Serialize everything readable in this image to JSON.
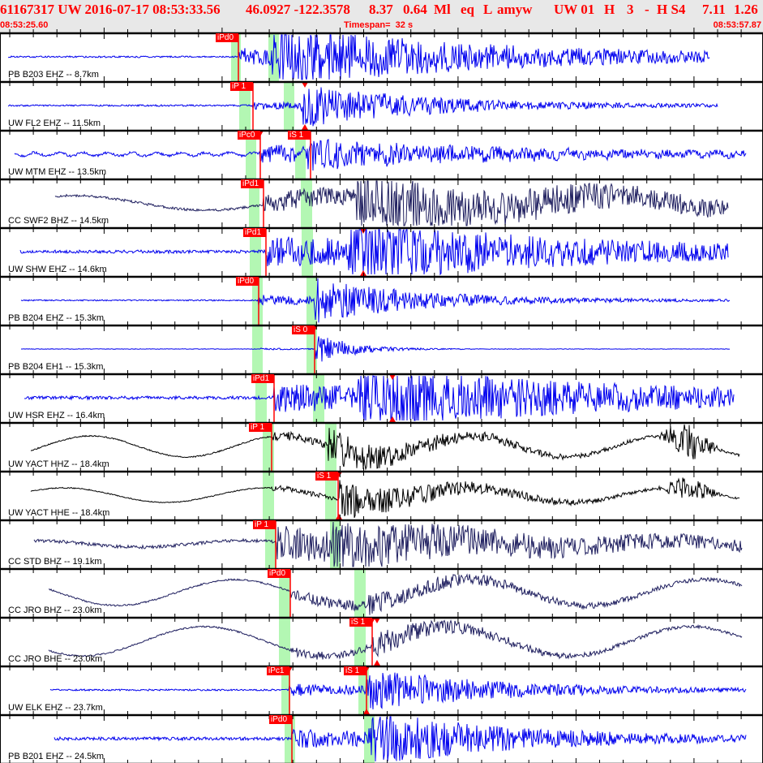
{
  "header": {
    "event_id": "61167317 UW 2016-07-17 08:53:33.56",
    "lat_lon": "46.0927 -122.3578",
    "depth": "8.37",
    "magnitude": "0.64",
    "mag_type": "Ml",
    "event_type": "eq",
    "location_type": "L",
    "analyst": "amyw",
    "network_version": "UW 01",
    "f1": "H",
    "f2": "3",
    "f3": "-",
    "f4": "H S4",
    "v1": "7.11",
    "v2": "1.26",
    "start_time": "08:53:25.60",
    "timespan": "Timespan=  32 s",
    "end_time": "08:53:57.87"
  },
  "colors": {
    "header_text": "#ff0000",
    "header_bg": "#e8e8e8",
    "pick": "#ff0000",
    "window": "#b3f7b3",
    "trace_blue": "#0000ee",
    "trace_navy": "#202060",
    "trace_black": "#000000"
  },
  "traces": [
    {
      "label": "PB B203 EHZ -- 8.7km",
      "picks": [
        "iPd0"
      ]
    },
    {
      "label": "UW FL2 EHZ -- 11.5km",
      "picks": [
        "iP 1"
      ]
    },
    {
      "label": "UW MTM EHZ -- 13.5km",
      "picks": [
        "iPc0",
        "iS 1"
      ]
    },
    {
      "label": "CC SWF2 BHZ -- 14.5km",
      "picks": [
        "iPd1"
      ]
    },
    {
      "label": "UW SHW EHZ -- 14.6km",
      "picks": [
        "iPd1"
      ]
    },
    {
      "label": "PB B204 EHZ -- 15.3km",
      "picks": [
        "iPd0"
      ]
    },
    {
      "label": "PB B204 EH1 -- 15.3km",
      "picks": [
        "iS 0"
      ]
    },
    {
      "label": "UW HSR EHZ -- 16.4km",
      "picks": [
        "iPd1"
      ]
    },
    {
      "label": "UW YACT HHZ -- 18.4km",
      "picks": [
        "iP 1"
      ]
    },
    {
      "label": "UW YACT HHE -- 18.4km",
      "picks": [
        "iS 1"
      ]
    },
    {
      "label": "CC STD BHZ -- 19.1km",
      "picks": [
        "iP 1"
      ]
    },
    {
      "label": "CC JRO BHZ -- 23.0km",
      "picks": [
        "iPd0"
      ]
    },
    {
      "label": "CC JRO BHE -- 23.0km",
      "picks": [
        "iS 1"
      ]
    },
    {
      "label": "UW ELK EHZ -- 23.7km",
      "picks": [
        "iPc1",
        "iS 1"
      ]
    },
    {
      "label": "PB B201 EHZ -- 24.5km",
      "picks": [
        "iPd0"
      ]
    }
  ]
}
